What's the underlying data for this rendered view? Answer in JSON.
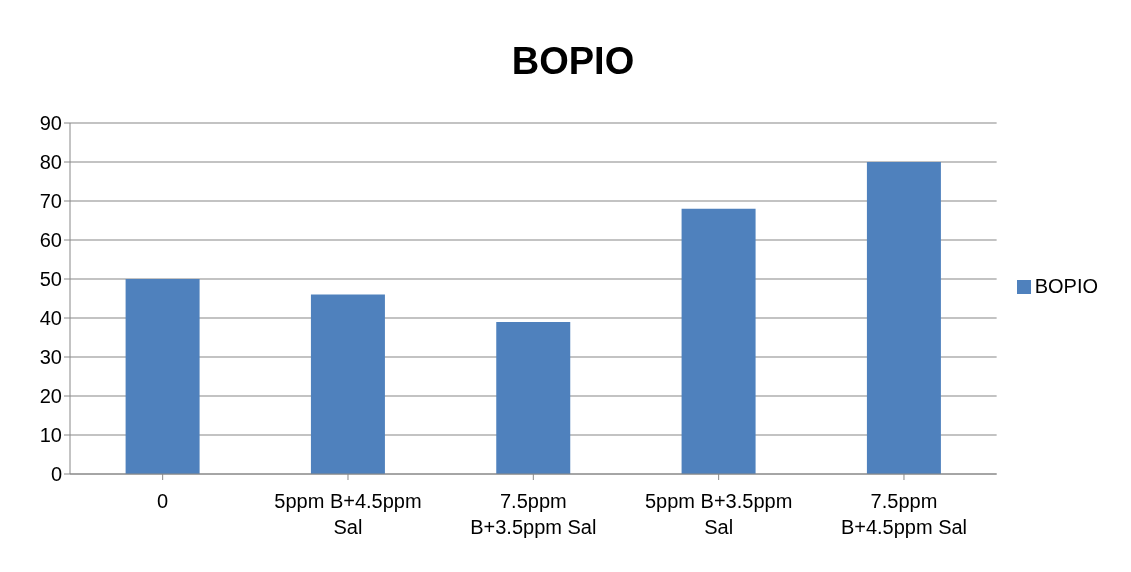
{
  "chart_data": {
    "type": "bar",
    "title": "BOPIO",
    "categories": [
      "0",
      "5ppm B+4.5ppm Sal",
      "7.5ppm B+3.5ppm Sal",
      "5ppm B+3.5ppm Sal",
      "7.5ppm B+4.5ppm Sal"
    ],
    "series": [
      {
        "name": "BOPIO",
        "color": "#4f81bd",
        "values": [
          50,
          46,
          39,
          68,
          80
        ]
      }
    ],
    "ylim": [
      0,
      90
    ],
    "yticks": [
      0,
      10,
      20,
      30,
      40,
      50,
      60,
      70,
      80,
      90
    ],
    "grid": "y",
    "legend": "right"
  }
}
